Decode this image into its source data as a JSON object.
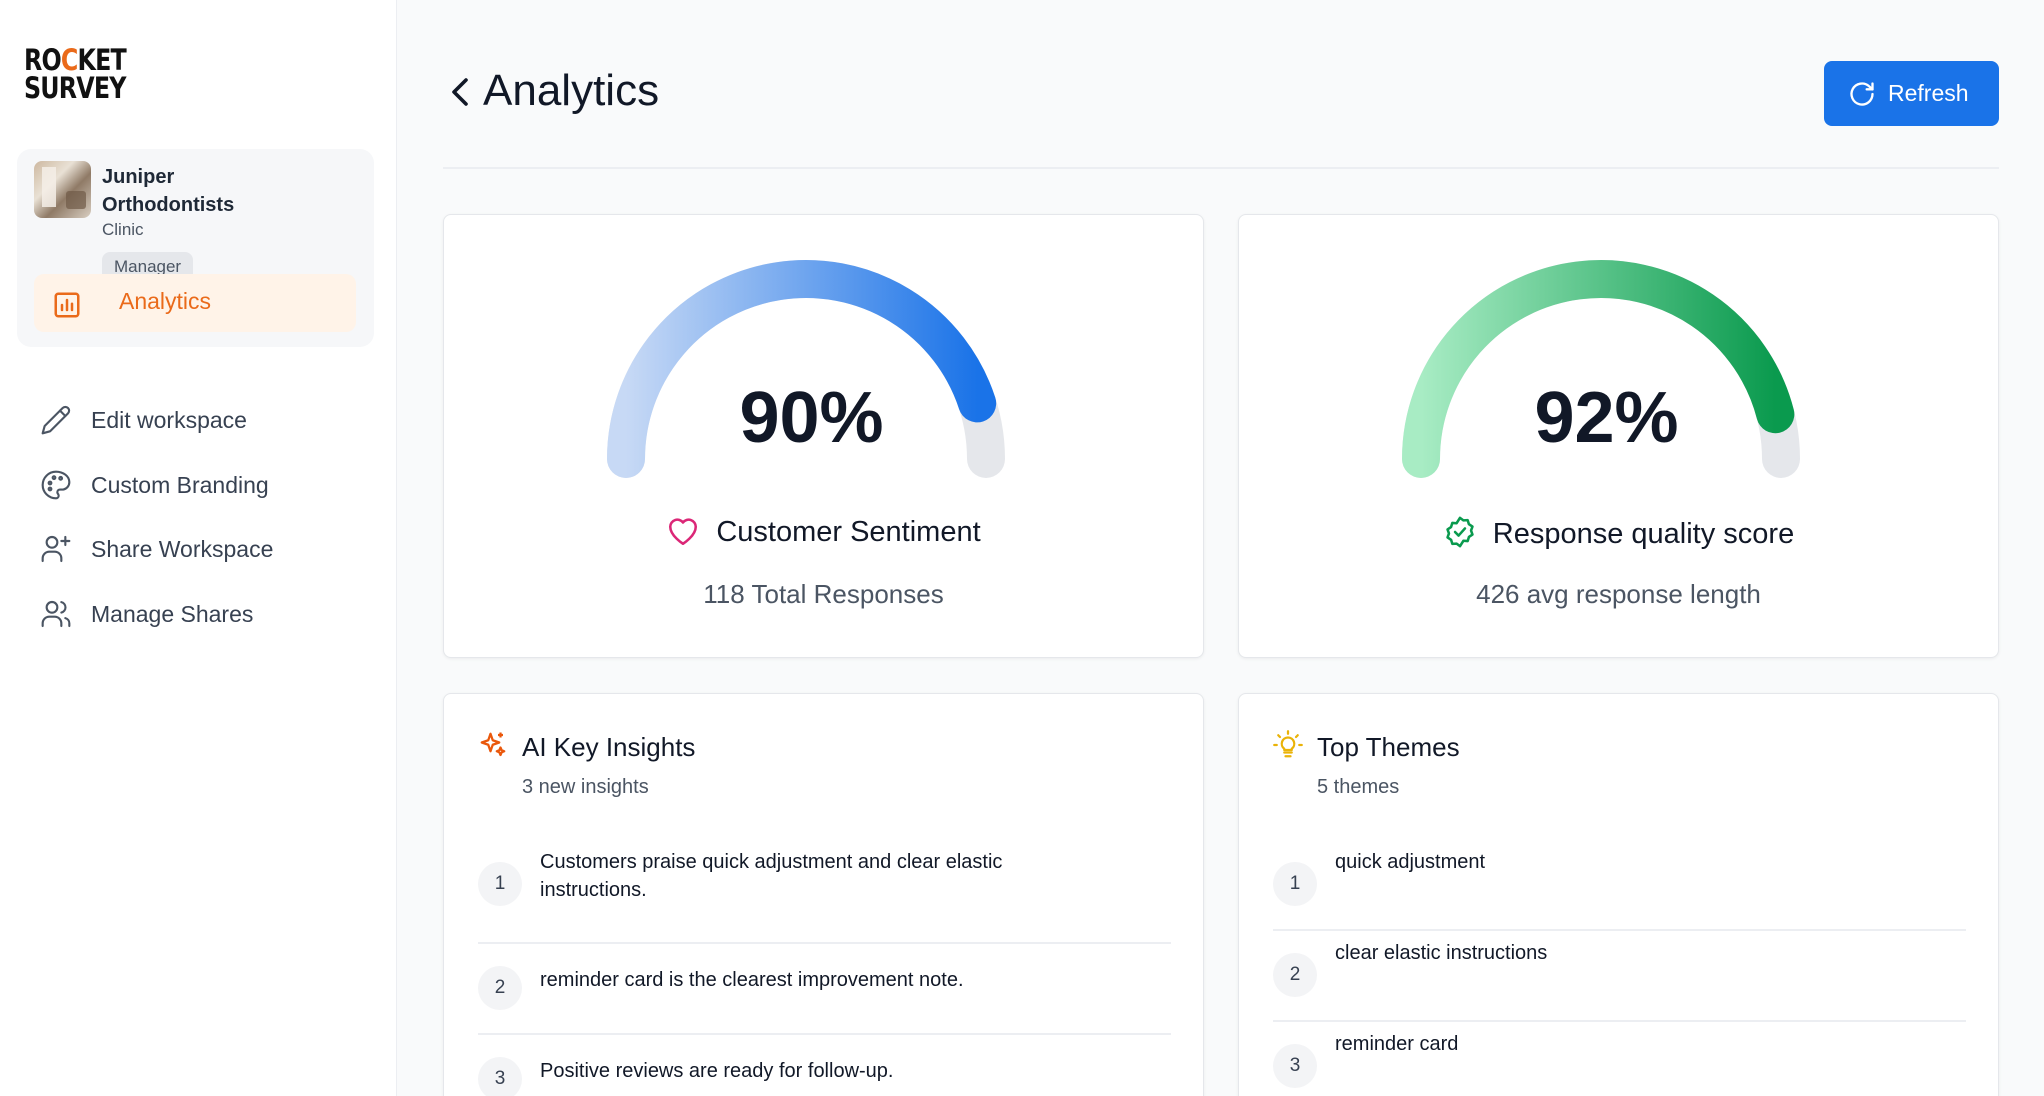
{
  "logo": {
    "line1_a": "RO",
    "line1_flame": "C",
    "line1_b": "KET",
    "line2": "SURVEY"
  },
  "workspace": {
    "name": "Juniper Orthodontists",
    "type": "Clinic",
    "role": "Manager",
    "active_nav": "Analytics"
  },
  "nav": [
    {
      "label": "Edit workspace",
      "icon": "pencil-icon"
    },
    {
      "label": "Custom Branding",
      "icon": "palette-icon"
    },
    {
      "label": "Share Workspace",
      "icon": "user-plus-icon"
    },
    {
      "label": "Manage Shares",
      "icon": "users-icon"
    }
  ],
  "header": {
    "title": "Analytics",
    "refresh_label": "Refresh"
  },
  "colors": {
    "accent_orange": "#ea6a1a",
    "primary_blue": "#1a73e8",
    "gauge_blue_start": "#c7d9f5",
    "gauge_blue_end": "#1a73e8",
    "gauge_green_start": "#a8ecc4",
    "gauge_green_end": "#0a9a4e",
    "gauge_track": "#e5e7eb"
  },
  "gauges": [
    {
      "value": 90,
      "display": "90%",
      "label": "Customer Sentiment",
      "icon": "heart-icon",
      "sub": "118 Total Responses"
    },
    {
      "value": 92,
      "display": "92%",
      "label": "Response quality score",
      "icon": "badge-check-icon",
      "sub": "426 avg response length"
    }
  ],
  "insights": {
    "title": "AI Key Insights",
    "subtitle": "3 new insights",
    "items": [
      {
        "num": "1",
        "text": "Customers praise quick adjustment and clear elastic instructions."
      },
      {
        "num": "2",
        "text": "reminder card is the clearest improvement note."
      },
      {
        "num": "3",
        "text": "Positive reviews are ready for follow-up."
      }
    ]
  },
  "themes": {
    "title": "Top Themes",
    "subtitle": "5 themes",
    "items": [
      {
        "num": "1",
        "text": "quick adjustment"
      },
      {
        "num": "2",
        "text": "clear elastic instructions"
      },
      {
        "num": "3",
        "text": "reminder card"
      }
    ]
  }
}
